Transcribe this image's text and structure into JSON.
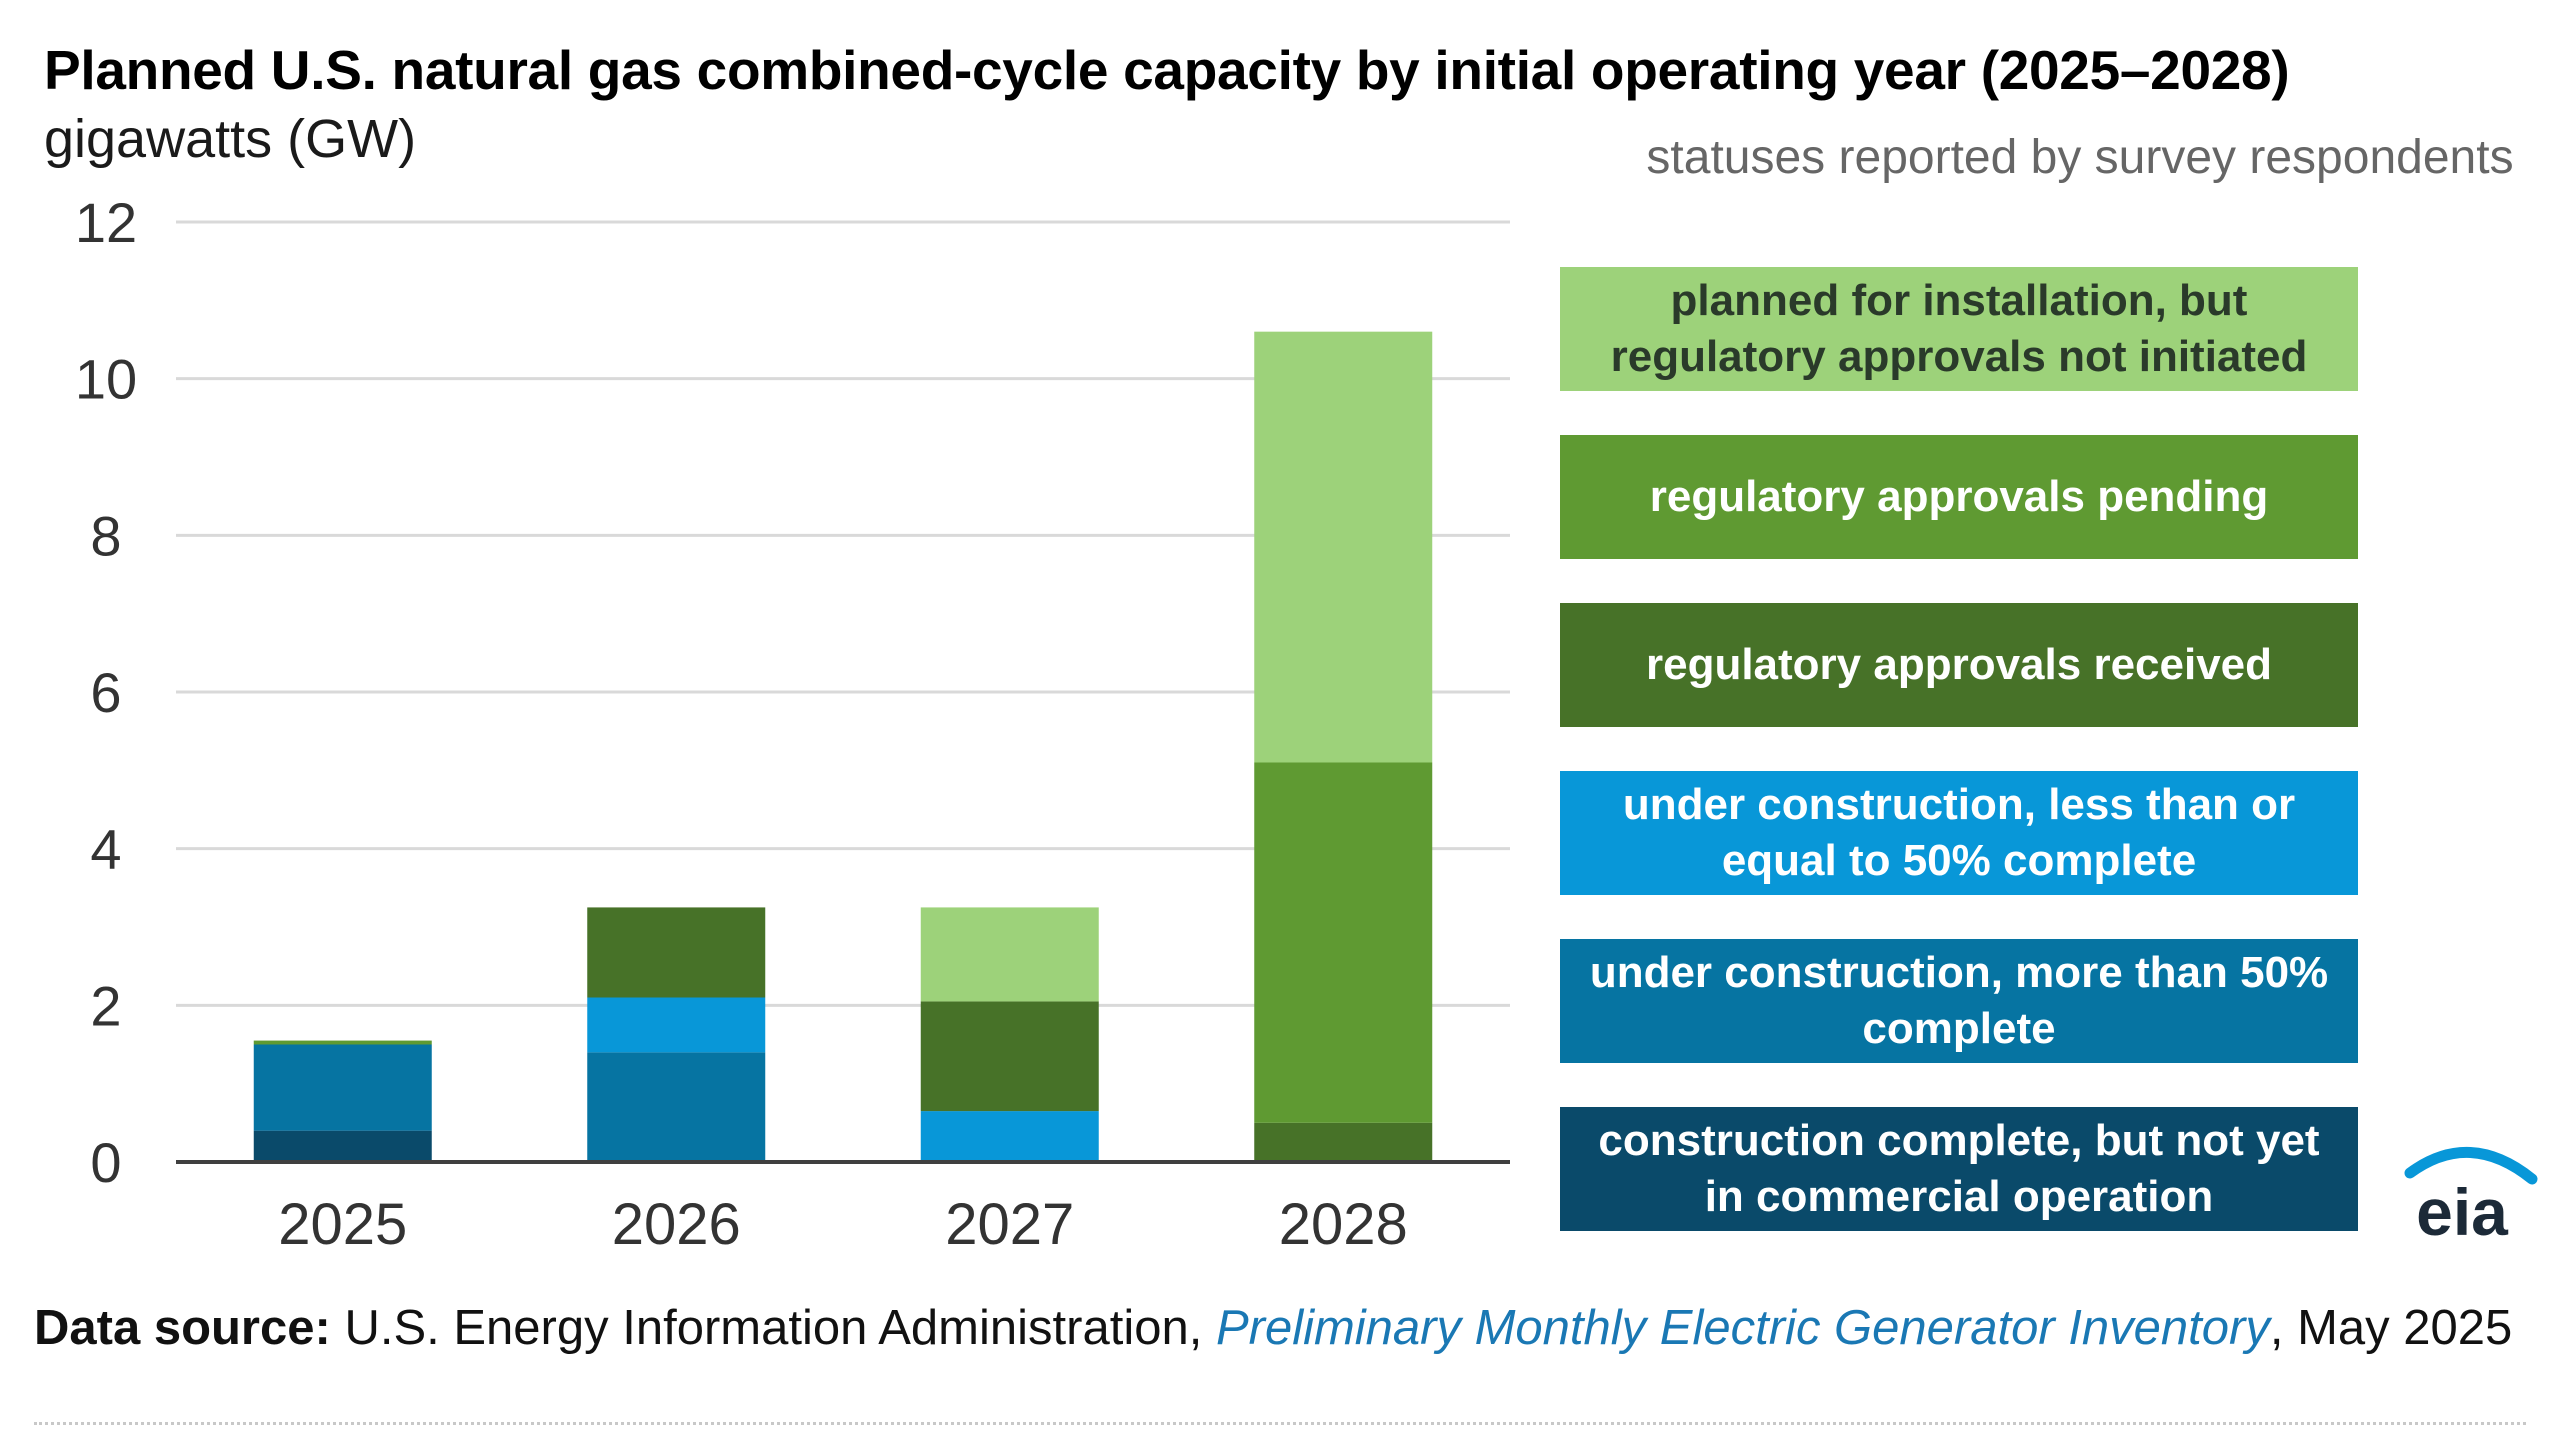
{
  "title": "Planned U.S. natural gas combined-cycle capacity by initial operating year (2025–2028)",
  "unit_label": "gigawatts (GW)",
  "legend_heading": "statuses reported by survey respondents",
  "colors": {
    "planned_not_initiated": "#9dd27a",
    "approvals_pending": "#5f9a32",
    "approvals_received": "#477228",
    "under_construction_le50": "#0897d8",
    "under_construction_gt50": "#0674a2",
    "construction_complete": "#0a4a6a",
    "gridline": "#d9d9d9",
    "axis": "#3f3f3f"
  },
  "legend": [
    {
      "label": "planned for installation, but regulatory approvals not initiated",
      "color_key": "planned_not_initiated",
      "dark_text": true
    },
    {
      "label": "regulatory approvals pending",
      "color_key": "approvals_pending",
      "dark_text": false
    },
    {
      "label": "regulatory approvals received",
      "color_key": "approvals_received",
      "dark_text": false
    },
    {
      "label": "under construction, less than or equal to 50% complete",
      "color_key": "under_construction_le50",
      "dark_text": false
    },
    {
      "label": "under construction, more than 50% complete",
      "color_key": "under_construction_gt50",
      "dark_text": false
    },
    {
      "label": "construction complete, but not yet in commercial operation",
      "color_key": "construction_complete",
      "dark_text": false
    }
  ],
  "source": {
    "label": "Data source:",
    "text_before": " U.S. Energy Information Administration, ",
    "publication": "Preliminary Monthly Electric Generator Inventory",
    "text_after": ", May 2025"
  },
  "logo_text": "eia",
  "chart_data": {
    "type": "bar",
    "stacked": true,
    "title": "Planned U.S. natural gas combined-cycle capacity by initial operating year (2025–2028)",
    "ylabel": "gigawatts (GW)",
    "xlabel": "",
    "ylim": [
      0,
      12
    ],
    "yticks": [
      0,
      2,
      4,
      6,
      8,
      10,
      12
    ],
    "grid": true,
    "legend_position": "right",
    "categories": [
      "2025",
      "2026",
      "2027",
      "2028"
    ],
    "series": [
      {
        "name": "construction complete, but not yet in commercial operation",
        "color_key": "construction_complete",
        "values": [
          0.4,
          0.0,
          0.0,
          0.0
        ]
      },
      {
        "name": "under construction, more than 50% complete",
        "color_key": "under_construction_gt50",
        "values": [
          1.1,
          1.4,
          0.0,
          0.0
        ]
      },
      {
        "name": "under construction, less than or equal to 50% complete",
        "color_key": "under_construction_le50",
        "values": [
          0.0,
          0.7,
          0.65,
          0.0
        ]
      },
      {
        "name": "regulatory approvals received",
        "color_key": "approvals_received",
        "values": [
          0.0,
          1.15,
          1.4,
          0.5
        ]
      },
      {
        "name": "regulatory approvals pending",
        "color_key": "approvals_pending",
        "values": [
          0.05,
          0.0,
          0.0,
          4.6
        ]
      },
      {
        "name": "planned for installation, but regulatory approvals not initiated",
        "color_key": "planned_not_initiated",
        "values": [
          0.0,
          0.0,
          1.2,
          5.5
        ]
      }
    ]
  }
}
